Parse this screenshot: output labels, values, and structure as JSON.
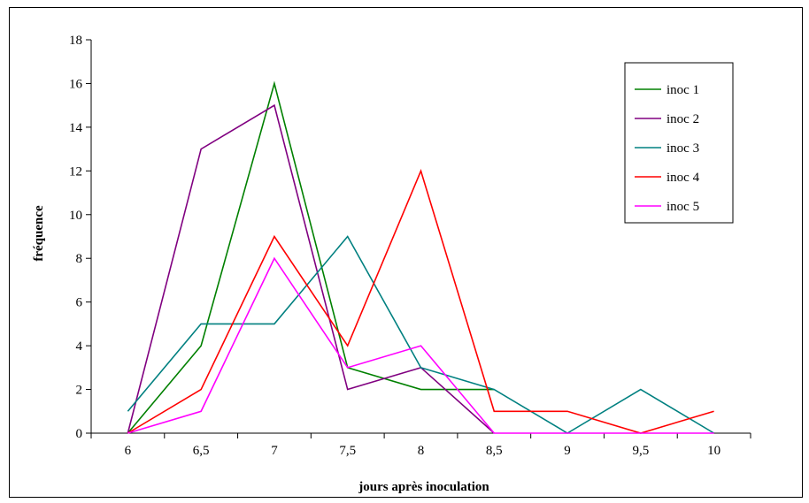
{
  "chart_data": {
    "type": "line",
    "title": "",
    "xlabel": "jours après inoculation",
    "ylabel": "fréquence",
    "categories": [
      "6",
      "6,5",
      "7",
      "7,5",
      "8",
      "8,5",
      "9",
      "9,5",
      "10"
    ],
    "ylim": [
      0,
      18
    ],
    "yticks": [
      "0",
      "2",
      "4",
      "6",
      "8",
      "10",
      "12",
      "14",
      "16",
      "18"
    ],
    "grid": false,
    "legend_position": "top-right",
    "series": [
      {
        "name": "inoc 1",
        "color": "#008000",
        "values": [
          0,
          4,
          16,
          3,
          2,
          2,
          null,
          null,
          null
        ]
      },
      {
        "name": "inoc 2",
        "color": "#800080",
        "values": [
          0,
          13,
          15,
          2,
          3,
          0,
          null,
          null,
          null
        ]
      },
      {
        "name": "inoc 3",
        "color": "#008080",
        "values": [
          1,
          5,
          5,
          9,
          3,
          2,
          0,
          2,
          0
        ]
      },
      {
        "name": "inoc 4",
        "color": "#ff0000",
        "values": [
          0,
          2,
          9,
          4,
          12,
          1,
          1,
          0,
          1
        ]
      },
      {
        "name": "inoc 5",
        "color": "#ff00ff",
        "values": [
          0,
          1,
          8,
          3,
          4,
          0,
          0,
          0,
          0
        ]
      }
    ]
  }
}
